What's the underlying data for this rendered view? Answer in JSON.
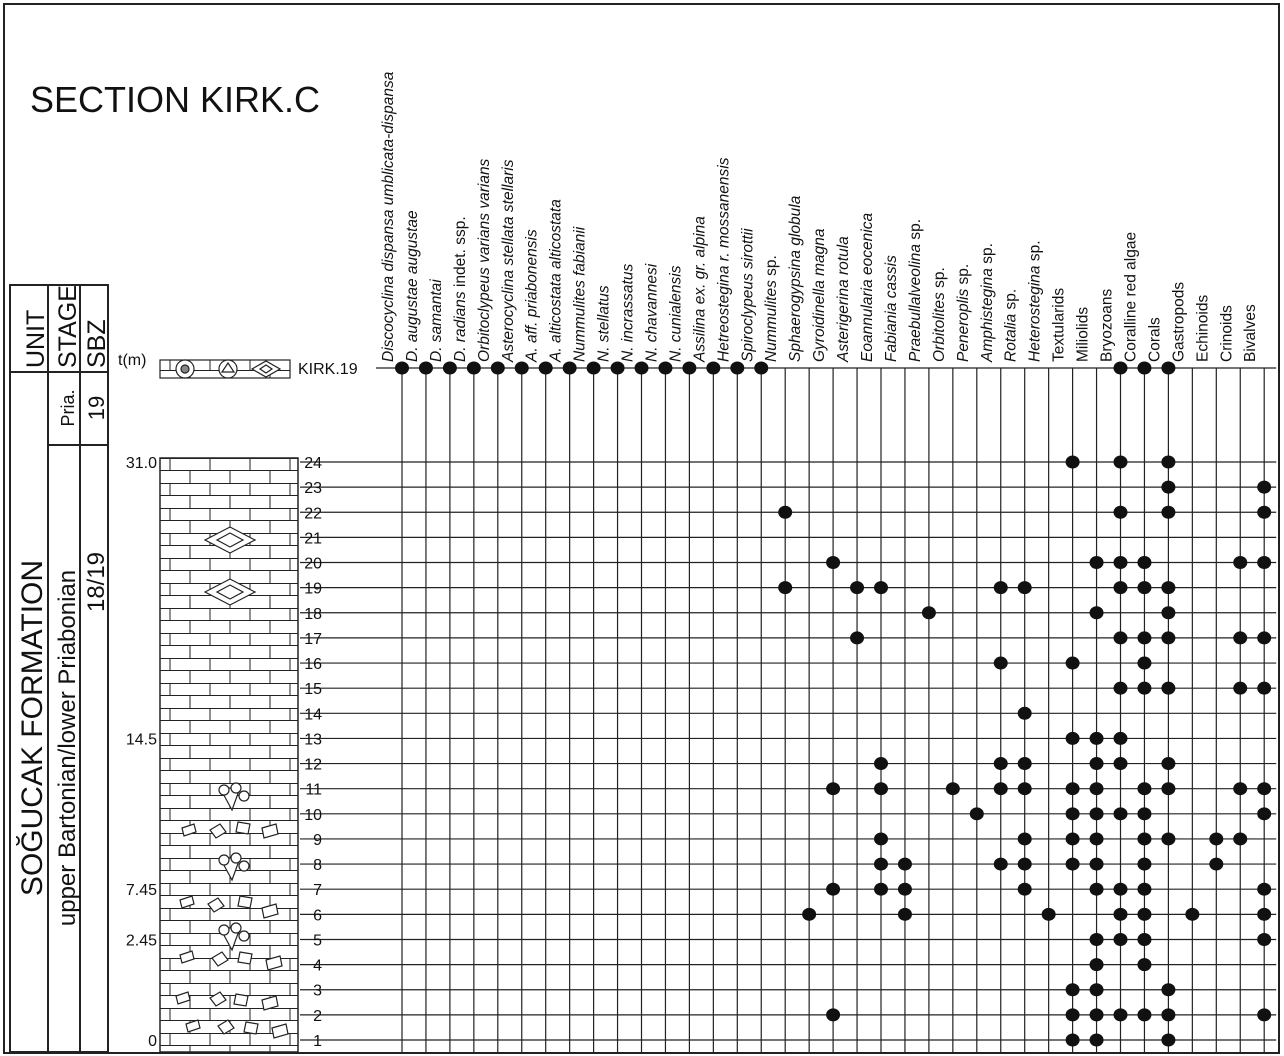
{
  "header": {
    "title": "SECTION KIRK.C"
  },
  "columns": {
    "unit": "UNIT",
    "stage": "STAGE",
    "sbz": "SBZ",
    "thickness": "t(m)"
  },
  "unit": "SOĞUCAK FORMATION",
  "stages": [
    {
      "label": "Pria."
    },
    {
      "label": "upper Bartonian/lower Priabonian"
    }
  ],
  "sbz": [
    "19",
    "18/19"
  ],
  "taxa": [
    {
      "name": "Discocyclina dispansa umblicata-dispansa",
      "italic": true
    },
    {
      "name": "D. augustae augustae",
      "italic": true
    },
    {
      "name": "D. samantai",
      "italic": true
    },
    {
      "name": "D. radians",
      "suffix": "indet. ssp.",
      "italic": true
    },
    {
      "name": "Orbitoclypeus varians varians",
      "italic": true
    },
    {
      "name": "Asterocyclina stellata stellaris",
      "italic": true
    },
    {
      "name": "A. aff. priabonensis",
      "italic": true
    },
    {
      "name": "A. alticostata alticostata",
      "italic": true
    },
    {
      "name": "Nummulites fabianii",
      "italic": true
    },
    {
      "name": "N. stellatus",
      "italic": true
    },
    {
      "name": "N. incrassatus",
      "italic": true
    },
    {
      "name": "N. chavannesi",
      "italic": true
    },
    {
      "name": "N. cunialensis",
      "italic": true
    },
    {
      "name": "Assilina ex. gr. alpina",
      "italic": true
    },
    {
      "name": "Hetreostegina r. mossanensis",
      "italic": true
    },
    {
      "name": "Spiroclypeus sirottii",
      "italic": true
    },
    {
      "name": "Nummulites",
      "suffix": "sp.",
      "italic": true
    },
    {
      "name": "Sphaerogypsina globula",
      "italic": true
    },
    {
      "name": "Gyroidinella magna",
      "italic": true
    },
    {
      "name": "Asterigerina rotula",
      "italic": true
    },
    {
      "name": "Eoannularia eocenica",
      "italic": true
    },
    {
      "name": "Fabiania cassis",
      "italic": true
    },
    {
      "name": "Praebullalveolina",
      "suffix": "sp.",
      "italic": true
    },
    {
      "name": "Orbitolites",
      "suffix": "sp.",
      "italic": true
    },
    {
      "name": "Peneroplis",
      "suffix": "sp.",
      "italic": true
    },
    {
      "name": "Amphistegina",
      "suffix": "sp.",
      "italic": true
    },
    {
      "name": "Rotalia",
      "suffix": "sp.",
      "italic": true
    },
    {
      "name": "Heterostegina",
      "suffix": "sp.",
      "italic": true
    },
    {
      "name": "Textularids",
      "italic": false
    },
    {
      "name": "Miliolids",
      "italic": false
    },
    {
      "name": "Bryozoans",
      "italic": false
    },
    {
      "name": "Coralline red algae",
      "italic": false
    },
    {
      "name": "Corals",
      "italic": false
    },
    {
      "name": "Gastropods",
      "italic": false
    },
    {
      "name": "Echinoids",
      "italic": false
    },
    {
      "name": "Crinoids",
      "italic": false
    },
    {
      "name": "Bivalves",
      "italic": false
    }
  ],
  "samples": [
    {
      "label": "KIRK.19",
      "occurrences": [
        true,
        true,
        true,
        true,
        true,
        true,
        true,
        true,
        true,
        true,
        true,
        true,
        true,
        true,
        true,
        true,
        false,
        false,
        false,
        false,
        false,
        false,
        false,
        false,
        false,
        false,
        false,
        false,
        false,
        false,
        true,
        true,
        true,
        false,
        false,
        false,
        false
      ]
    },
    {
      "label": "24",
      "thickness": "31.0",
      "occurrences": [
        false,
        false,
        false,
        false,
        false,
        false,
        false,
        false,
        false,
        false,
        false,
        false,
        false,
        false,
        false,
        false,
        false,
        false,
        false,
        false,
        false,
        false,
        false,
        false,
        false,
        false,
        false,
        false,
        true,
        false,
        true,
        false,
        true,
        false,
        false,
        false,
        false
      ]
    },
    {
      "label": "23",
      "occurrences": [
        false,
        false,
        false,
        false,
        false,
        false,
        false,
        false,
        false,
        false,
        false,
        false,
        false,
        false,
        false,
        false,
        false,
        false,
        false,
        false,
        false,
        false,
        false,
        false,
        false,
        false,
        false,
        false,
        false,
        false,
        false,
        false,
        true,
        false,
        false,
        false,
        true
      ]
    },
    {
      "label": "22",
      "occurrences": [
        false,
        false,
        false,
        false,
        false,
        false,
        false,
        false,
        false,
        false,
        false,
        false,
        false,
        false,
        false,
        false,
        true,
        false,
        false,
        false,
        false,
        false,
        false,
        false,
        false,
        false,
        false,
        false,
        false,
        false,
        true,
        false,
        true,
        false,
        false,
        false,
        true
      ]
    },
    {
      "label": "21",
      "occurrences": [
        false,
        false,
        false,
        false,
        false,
        false,
        false,
        false,
        false,
        false,
        false,
        false,
        false,
        false,
        false,
        false,
        false,
        false,
        false,
        false,
        false,
        false,
        false,
        false,
        false,
        false,
        false,
        false,
        false,
        false,
        false,
        false,
        false,
        false,
        false,
        false,
        false
      ]
    },
    {
      "label": "20",
      "occurrences": [
        false,
        false,
        false,
        false,
        false,
        false,
        false,
        false,
        false,
        false,
        false,
        false,
        false,
        false,
        false,
        false,
        false,
        false,
        true,
        false,
        false,
        false,
        false,
        false,
        false,
        false,
        false,
        false,
        false,
        true,
        true,
        true,
        false,
        false,
        false,
        true,
        true
      ]
    },
    {
      "label": "19",
      "occurrences": [
        false,
        false,
        false,
        false,
        false,
        false,
        false,
        false,
        false,
        false,
        false,
        false,
        false,
        false,
        false,
        false,
        true,
        false,
        false,
        true,
        true,
        false,
        false,
        false,
        false,
        true,
        true,
        false,
        false,
        false,
        true,
        true,
        true,
        false,
        false,
        false,
        false
      ]
    },
    {
      "label": "18",
      "occurrences": [
        false,
        false,
        false,
        false,
        false,
        false,
        false,
        false,
        false,
        false,
        false,
        false,
        false,
        false,
        false,
        false,
        false,
        false,
        false,
        false,
        false,
        false,
        true,
        false,
        false,
        false,
        false,
        false,
        false,
        true,
        false,
        false,
        true,
        false,
        false,
        false,
        false
      ]
    },
    {
      "label": "17",
      "occurrences": [
        false,
        false,
        false,
        false,
        false,
        false,
        false,
        false,
        false,
        false,
        false,
        false,
        false,
        false,
        false,
        false,
        false,
        false,
        false,
        true,
        false,
        false,
        false,
        false,
        false,
        false,
        false,
        false,
        false,
        false,
        true,
        true,
        true,
        false,
        false,
        true,
        true
      ]
    },
    {
      "label": "16",
      "occurrences": [
        false,
        false,
        false,
        false,
        false,
        false,
        false,
        false,
        false,
        false,
        false,
        false,
        false,
        false,
        false,
        false,
        false,
        false,
        false,
        false,
        false,
        false,
        false,
        false,
        false,
        true,
        false,
        false,
        true,
        false,
        false,
        true,
        false,
        false,
        false,
        false,
        false
      ]
    },
    {
      "label": "15",
      "occurrences": [
        false,
        false,
        false,
        false,
        false,
        false,
        false,
        false,
        false,
        false,
        false,
        false,
        false,
        false,
        false,
        false,
        false,
        false,
        false,
        false,
        false,
        false,
        false,
        false,
        false,
        false,
        false,
        false,
        false,
        false,
        true,
        true,
        true,
        false,
        false,
        true,
        true
      ]
    },
    {
      "label": "14",
      "occurrences": [
        false,
        false,
        false,
        false,
        false,
        false,
        false,
        false,
        false,
        false,
        false,
        false,
        false,
        false,
        false,
        false,
        false,
        false,
        false,
        false,
        false,
        false,
        false,
        false,
        false,
        false,
        true,
        false,
        false,
        false,
        false,
        false,
        false,
        false,
        false,
        false,
        false
      ]
    },
    {
      "label": "13",
      "thickness": "14.5",
      "occurrences": [
        false,
        false,
        false,
        false,
        false,
        false,
        false,
        false,
        false,
        false,
        false,
        false,
        false,
        false,
        false,
        false,
        false,
        false,
        false,
        false,
        false,
        false,
        false,
        false,
        false,
        false,
        false,
        false,
        true,
        true,
        true,
        false,
        false,
        false,
        false,
        false,
        false
      ]
    },
    {
      "label": "12",
      "occurrences": [
        false,
        false,
        false,
        false,
        false,
        false,
        false,
        false,
        false,
        false,
        false,
        false,
        false,
        false,
        false,
        false,
        false,
        false,
        false,
        false,
        true,
        false,
        false,
        false,
        false,
        true,
        true,
        false,
        false,
        true,
        true,
        false,
        true,
        false,
        false,
        false,
        false
      ]
    },
    {
      "label": "11",
      "occurrences": [
        false,
        false,
        false,
        false,
        false,
        false,
        false,
        false,
        false,
        false,
        false,
        false,
        false,
        false,
        false,
        false,
        false,
        false,
        true,
        false,
        true,
        false,
        false,
        true,
        false,
        true,
        true,
        false,
        true,
        true,
        false,
        true,
        true,
        false,
        false,
        true,
        true
      ]
    },
    {
      "label": "10",
      "occurrences": [
        false,
        false,
        false,
        false,
        false,
        false,
        false,
        false,
        false,
        false,
        false,
        false,
        false,
        false,
        false,
        false,
        false,
        false,
        false,
        false,
        false,
        false,
        false,
        false,
        true,
        false,
        false,
        false,
        true,
        true,
        true,
        true,
        false,
        false,
        false,
        false,
        true
      ]
    },
    {
      "label": "9",
      "occurrences": [
        false,
        false,
        false,
        false,
        false,
        false,
        false,
        false,
        false,
        false,
        false,
        false,
        false,
        false,
        false,
        false,
        false,
        false,
        false,
        false,
        true,
        false,
        false,
        false,
        false,
        false,
        true,
        false,
        true,
        true,
        false,
        true,
        true,
        false,
        true,
        true,
        false
      ]
    },
    {
      "label": "8",
      "occurrences": [
        false,
        false,
        false,
        false,
        false,
        false,
        false,
        false,
        false,
        false,
        false,
        false,
        false,
        false,
        false,
        false,
        false,
        false,
        false,
        false,
        true,
        true,
        false,
        false,
        false,
        true,
        true,
        false,
        true,
        true,
        false,
        true,
        false,
        false,
        true,
        false,
        false
      ]
    },
    {
      "label": "7",
      "thickness": "7.45",
      "occurrences": [
        false,
        false,
        false,
        false,
        false,
        false,
        false,
        false,
        false,
        false,
        false,
        false,
        false,
        false,
        false,
        false,
        false,
        false,
        true,
        false,
        true,
        true,
        false,
        false,
        false,
        false,
        true,
        false,
        false,
        true,
        true,
        true,
        false,
        false,
        false,
        false,
        true
      ]
    },
    {
      "label": "6",
      "occurrences": [
        false,
        false,
        false,
        false,
        false,
        false,
        false,
        false,
        false,
        false,
        false,
        false,
        false,
        false,
        false,
        false,
        false,
        true,
        false,
        false,
        false,
        true,
        false,
        false,
        false,
        false,
        false,
        true,
        false,
        false,
        true,
        true,
        false,
        true,
        false,
        false,
        true
      ]
    },
    {
      "label": "5",
      "thickness": "2.45",
      "occurrences": [
        false,
        false,
        false,
        false,
        false,
        false,
        false,
        false,
        false,
        false,
        false,
        false,
        false,
        false,
        false,
        false,
        false,
        false,
        false,
        false,
        false,
        false,
        false,
        false,
        false,
        false,
        false,
        false,
        false,
        true,
        true,
        true,
        false,
        false,
        false,
        false,
        true
      ]
    },
    {
      "label": "4",
      "occurrences": [
        false,
        false,
        false,
        false,
        false,
        false,
        false,
        false,
        false,
        false,
        false,
        false,
        false,
        false,
        false,
        false,
        false,
        false,
        false,
        false,
        false,
        false,
        false,
        false,
        false,
        false,
        false,
        false,
        false,
        true,
        false,
        true,
        false,
        false,
        false,
        false,
        false
      ]
    },
    {
      "label": "3",
      "occurrences": [
        false,
        false,
        false,
        false,
        false,
        false,
        false,
        false,
        false,
        false,
        false,
        false,
        false,
        false,
        false,
        false,
        false,
        false,
        false,
        false,
        false,
        false,
        false,
        false,
        false,
        false,
        false,
        false,
        true,
        true,
        false,
        false,
        true,
        false,
        false,
        false,
        false
      ]
    },
    {
      "label": "2",
      "occurrences": [
        false,
        false,
        false,
        false,
        false,
        false,
        false,
        false,
        false,
        false,
        false,
        false,
        false,
        false,
        false,
        false,
        false,
        false,
        true,
        false,
        false,
        false,
        false,
        false,
        false,
        false,
        false,
        false,
        true,
        true,
        true,
        true,
        true,
        false,
        false,
        false,
        true
      ]
    },
    {
      "label": "1",
      "thickness": "0",
      "occurrences": [
        false,
        false,
        false,
        false,
        false,
        false,
        false,
        false,
        false,
        false,
        false,
        false,
        false,
        false,
        false,
        false,
        false,
        false,
        false,
        false,
        false,
        false,
        false,
        false,
        false,
        false,
        false,
        false,
        true,
        true,
        false,
        false,
        true,
        false,
        false,
        false,
        false
      ]
    }
  ]
}
